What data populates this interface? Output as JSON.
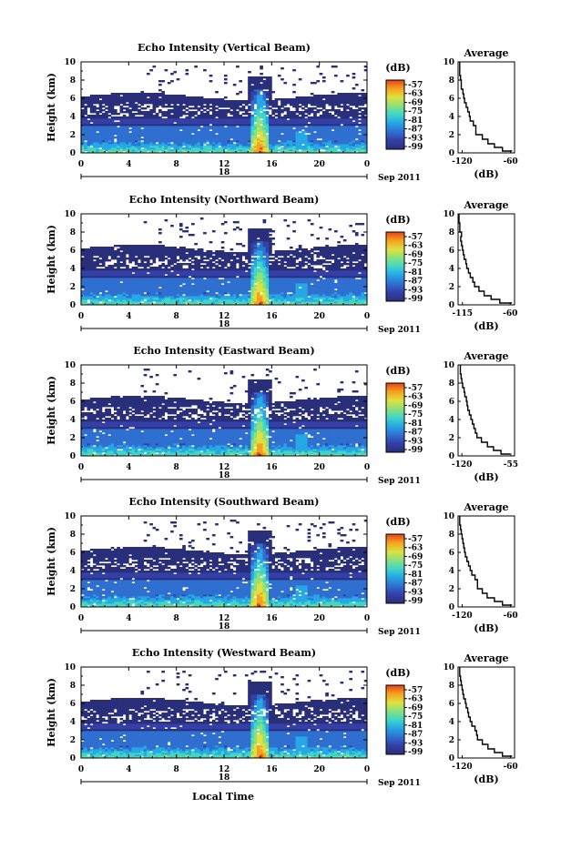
{
  "figure": {
    "x_axis_label": "Local Time",
    "colorbar_unit": "(dB)",
    "avg_xlabel": "(dB)",
    "avg_title": "Average",
    "ylabel": "Height (km)"
  },
  "chart_data": [
    {
      "type": "heatmap",
      "title": "Echo Intensity (Vertical Beam)",
      "xlabel": "",
      "ylabel": "Height (km)",
      "x_ticks": [
        "0",
        "4",
        "8",
        "12",
        "16",
        "20",
        "0"
      ],
      "y_ticks": [
        "0",
        "2",
        "4",
        "6",
        "8",
        "10"
      ],
      "xlim": [
        0,
        24
      ],
      "ylim": [
        0,
        10
      ],
      "date_label": "18",
      "date_suffix": "Sep 2011",
      "colorbar": {
        "label": "(dB)",
        "ticks": [
          "-57",
          "-63",
          "-69",
          "-75",
          "-81",
          "-87",
          "-93",
          "-99"
        ]
      },
      "average": {
        "title": "Average",
        "xlabel": "(dB)",
        "x_ticks": [
          "-120",
          "-60"
        ],
        "y_ticks": [
          "0",
          "2",
          "4",
          "6",
          "8",
          "10"
        ],
        "xlim": [
          -125,
          -55
        ],
        "profile": [
          [
            0.2,
            -58
          ],
          [
            0.6,
            -70
          ],
          [
            1.0,
            -80
          ],
          [
            1.5,
            -88
          ],
          [
            2.0,
            -95
          ],
          [
            2.5,
            -103
          ],
          [
            3.0,
            -103
          ],
          [
            3.5,
            -106
          ],
          [
            4.0,
            -110
          ],
          [
            4.5,
            -111
          ],
          [
            5.0,
            -113
          ],
          [
            5.5,
            -115
          ],
          [
            6.0,
            -117
          ],
          [
            6.5,
            -118
          ],
          [
            7.0,
            -119
          ],
          [
            7.5,
            -121
          ],
          [
            8.0,
            -121
          ],
          [
            8.5,
            -122
          ],
          [
            9.0,
            -123
          ],
          [
            9.5,
            -123
          ],
          [
            10.0,
            -123
          ]
        ]
      }
    },
    {
      "type": "heatmap",
      "title": "Echo Intensity (Northward Beam)",
      "xlabel": "",
      "ylabel": "Height (km)",
      "x_ticks": [
        "0",
        "4",
        "8",
        "12",
        "16",
        "20",
        "0"
      ],
      "y_ticks": [
        "0",
        "2",
        "4",
        "6",
        "8",
        "10"
      ],
      "xlim": [
        0,
        24
      ],
      "ylim": [
        0,
        10
      ],
      "date_label": "18",
      "date_suffix": "Sep 2011",
      "colorbar": {
        "label": "(dB)",
        "ticks": [
          "-57",
          "-63",
          "-69",
          "-75",
          "-81",
          "-87",
          "-93",
          "-99"
        ]
      },
      "average": {
        "title": "Average",
        "xlabel": "(dB)",
        "x_ticks": [
          "-115",
          "-60"
        ],
        "y_ticks": [
          "0",
          "2",
          "4",
          "6",
          "8",
          "10"
        ],
        "xlim": [
          -120,
          -55
        ],
        "profile": [
          [
            0.2,
            -58
          ],
          [
            0.6,
            -72
          ],
          [
            1.0,
            -82
          ],
          [
            1.5,
            -90
          ],
          [
            2.0,
            -96
          ],
          [
            2.5,
            -101
          ],
          [
            3.0,
            -103
          ],
          [
            3.5,
            -106
          ],
          [
            4.0,
            -108
          ],
          [
            4.5,
            -110
          ],
          [
            5.0,
            -111
          ],
          [
            5.5,
            -113
          ],
          [
            6.0,
            -114
          ],
          [
            6.5,
            -115
          ],
          [
            7.0,
            -116
          ],
          [
            7.5,
            -117
          ],
          [
            8.0,
            -116
          ],
          [
            8.5,
            -118
          ],
          [
            9.0,
            -118
          ],
          [
            9.5,
            -119
          ],
          [
            10.0,
            -119
          ]
        ]
      }
    },
    {
      "type": "heatmap",
      "title": "Echo Intensity (Eastward Beam)",
      "xlabel": "",
      "ylabel": "Height (km)",
      "x_ticks": [
        "0",
        "4",
        "8",
        "12",
        "16",
        "20",
        "0"
      ],
      "y_ticks": [
        "0",
        "2",
        "4",
        "6",
        "8",
        "10"
      ],
      "xlim": [
        0,
        24
      ],
      "ylim": [
        0,
        10
      ],
      "date_label": "18",
      "date_suffix": "Sep 2011",
      "colorbar": {
        "label": "(dB)",
        "ticks": [
          "-57",
          "-63",
          "-69",
          "-75",
          "-81",
          "-87",
          "-93",
          "-99"
        ]
      },
      "average": {
        "title": "Average",
        "xlabel": "(dB)",
        "x_ticks": [
          "-120",
          "-55"
        ],
        "y_ticks": [
          "0",
          "2",
          "4",
          "6",
          "8",
          "10"
        ],
        "xlim": [
          -125,
          -50
        ],
        "profile": [
          [
            0.2,
            -56
          ],
          [
            0.6,
            -68
          ],
          [
            1.0,
            -78
          ],
          [
            1.5,
            -86
          ],
          [
            2.0,
            -94
          ],
          [
            2.5,
            -100
          ],
          [
            3.0,
            -102
          ],
          [
            3.5,
            -104
          ],
          [
            4.0,
            -106
          ],
          [
            4.5,
            -108
          ],
          [
            5.0,
            -110
          ],
          [
            5.5,
            -112
          ],
          [
            6.0,
            -113
          ],
          [
            6.5,
            -114
          ],
          [
            7.0,
            -116
          ],
          [
            7.5,
            -117
          ],
          [
            8.0,
            -119
          ],
          [
            8.5,
            -120
          ],
          [
            9.0,
            -121
          ],
          [
            9.5,
            -122
          ],
          [
            10.0,
            -122
          ]
        ]
      }
    },
    {
      "type": "heatmap",
      "title": "Echo Intensity (Southward Beam)",
      "xlabel": "",
      "ylabel": "Height (km)",
      "x_ticks": [
        "0",
        "4",
        "8",
        "12",
        "16",
        "20",
        "0"
      ],
      "y_ticks": [
        "0",
        "2",
        "4",
        "6",
        "8",
        "10"
      ],
      "xlim": [
        0,
        24
      ],
      "ylim": [
        0,
        10
      ],
      "date_label": "18",
      "date_suffix": "Sep 2011",
      "colorbar": {
        "label": "(dB)",
        "ticks": [
          "-57",
          "-63",
          "-69",
          "-75",
          "-81",
          "-87",
          "-93",
          "-99"
        ]
      },
      "average": {
        "title": "Average",
        "xlabel": "(dB)",
        "x_ticks": [
          "-120",
          "-60"
        ],
        "y_ticks": [
          "0",
          "2",
          "4",
          "6",
          "8",
          "10"
        ],
        "xlim": [
          -125,
          -55
        ],
        "profile": [
          [
            0.2,
            -58
          ],
          [
            0.6,
            -70
          ],
          [
            1.0,
            -80
          ],
          [
            1.5,
            -89
          ],
          [
            2.0,
            -95
          ],
          [
            2.5,
            -101
          ],
          [
            3.0,
            -101
          ],
          [
            3.5,
            -104
          ],
          [
            4.0,
            -108
          ],
          [
            4.5,
            -110
          ],
          [
            5.0,
            -112
          ],
          [
            5.5,
            -114
          ],
          [
            6.0,
            -116
          ],
          [
            6.5,
            -117
          ],
          [
            7.0,
            -118
          ],
          [
            7.5,
            -119
          ],
          [
            8.0,
            -120
          ],
          [
            8.5,
            -121
          ],
          [
            9.0,
            -122
          ],
          [
            9.5,
            -123
          ],
          [
            10.0,
            -123
          ]
        ]
      }
    },
    {
      "type": "heatmap",
      "title": "Echo Intensity (Westward Beam)",
      "xlabel": "Local Time",
      "ylabel": "Height (km)",
      "x_ticks": [
        "0",
        "4",
        "8",
        "12",
        "16",
        "20",
        "0"
      ],
      "y_ticks": [
        "0",
        "2",
        "4",
        "6",
        "8",
        "10"
      ],
      "xlim": [
        0,
        24
      ],
      "ylim": [
        0,
        10
      ],
      "date_label": "18",
      "date_suffix": "Sep 2011",
      "colorbar": {
        "label": "(dB)",
        "ticks": [
          "-57",
          "-63",
          "-69",
          "-75",
          "-81",
          "-87",
          "-93",
          "-99"
        ]
      },
      "average": {
        "title": "Average",
        "xlabel": "(dB)",
        "x_ticks": [
          "-120",
          "-60"
        ],
        "y_ticks": [
          "0",
          "2",
          "4",
          "6",
          "8",
          "10"
        ],
        "xlim": [
          -125,
          -55
        ],
        "profile": [
          [
            0.2,
            -58
          ],
          [
            0.6,
            -70
          ],
          [
            1.0,
            -80
          ],
          [
            1.5,
            -88
          ],
          [
            2.0,
            -95
          ],
          [
            2.5,
            -101
          ],
          [
            3.0,
            -102
          ],
          [
            3.5,
            -104
          ],
          [
            4.0,
            -108
          ],
          [
            4.5,
            -110
          ],
          [
            5.0,
            -112
          ],
          [
            5.5,
            -113
          ],
          [
            6.0,
            -115
          ],
          [
            6.5,
            -116
          ],
          [
            7.0,
            -118
          ],
          [
            7.5,
            -119
          ],
          [
            8.0,
            -120
          ],
          [
            8.5,
            -121
          ],
          [
            9.0,
            -122
          ],
          [
            9.5,
            -123
          ],
          [
            10.0,
            -123
          ]
        ]
      }
    }
  ],
  "colors": {
    "background_echo": "#3b3f8c",
    "colormap": [
      "#2a2f7a",
      "#3440a8",
      "#2f6fd0",
      "#26a7e6",
      "#3fd6c8",
      "#8ee07a",
      "#e0e040",
      "#f5a020",
      "#e8401a"
    ]
  }
}
